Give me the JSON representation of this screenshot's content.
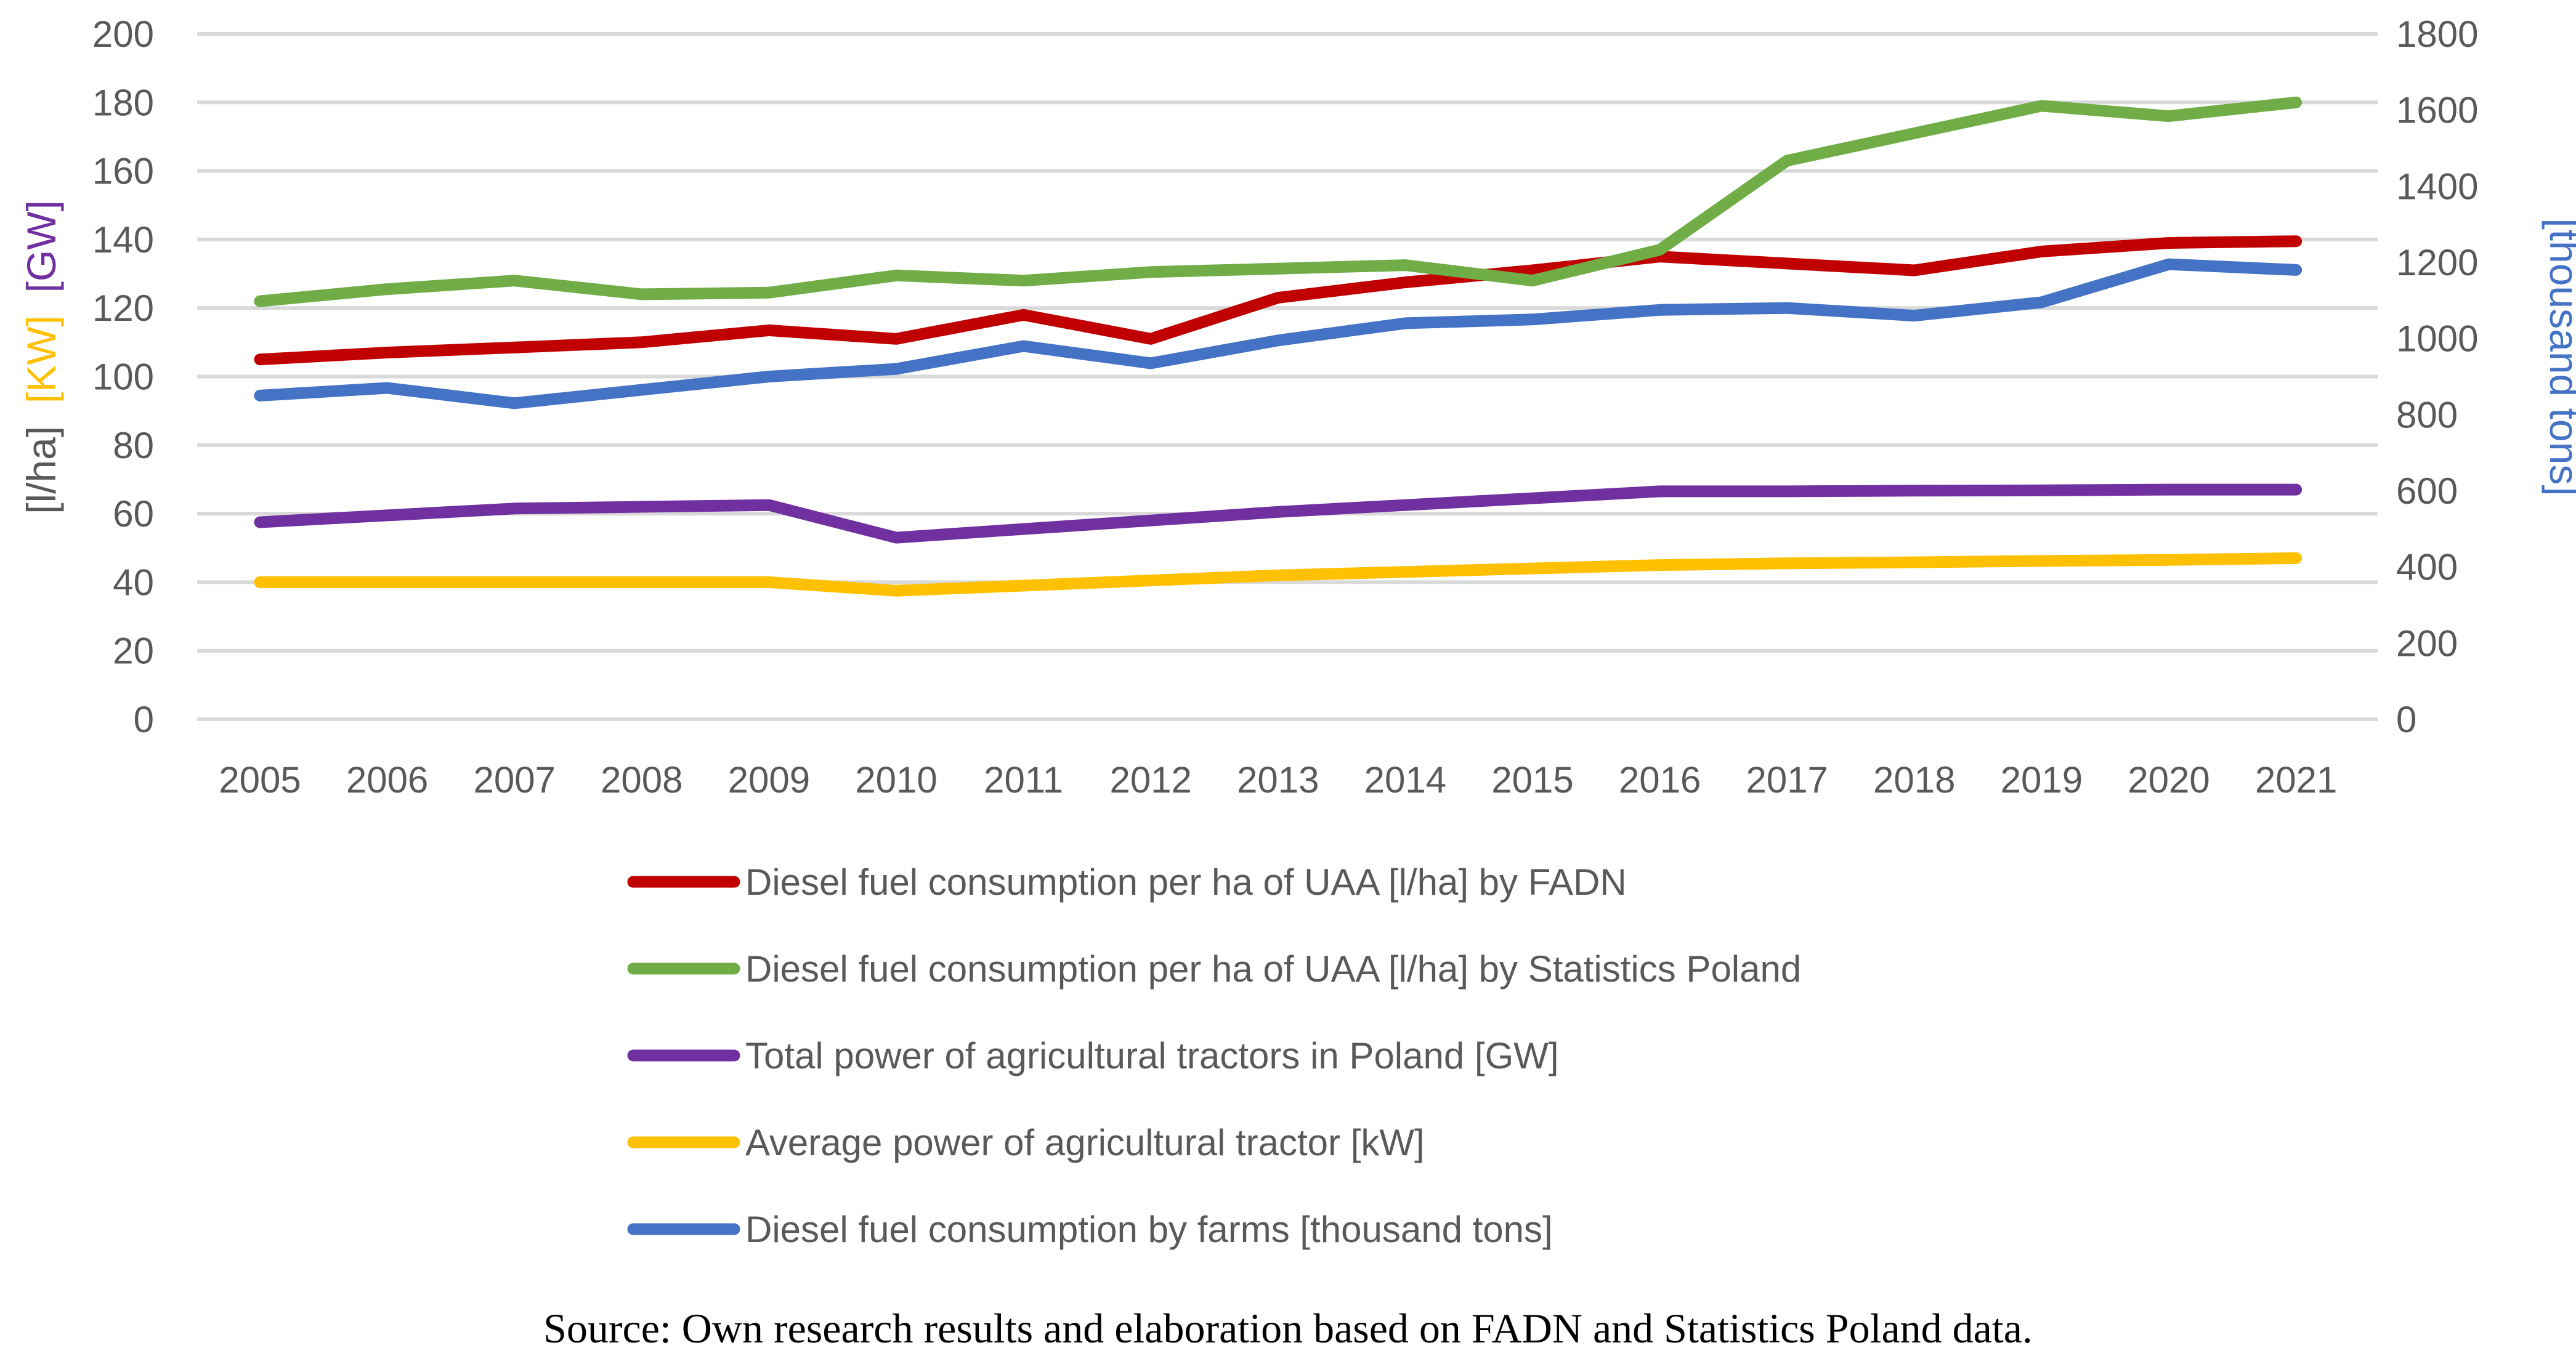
{
  "chart_data": {
    "type": "line",
    "x": [
      "2005",
      "2006",
      "2007",
      "2008",
      "2009",
      "2010",
      "2011",
      "2012",
      "2013",
      "2014",
      "2015",
      "2016",
      "2017",
      "2018",
      "2019",
      "2020",
      "2021"
    ],
    "y_left": {
      "ylim": [
        0,
        200
      ],
      "ticks": [
        0,
        20,
        40,
        60,
        80,
        100,
        120,
        140,
        160,
        180,
        200
      ],
      "label_parts": [
        {
          "text": "[l/ha]",
          "color": "#595959"
        },
        {
          "text": "[KW]",
          "color": "#FFC000"
        },
        {
          "text": "[GW]",
          "color": "#7030A0"
        }
      ]
    },
    "y_right": {
      "ylim": [
        0,
        1800
      ],
      "ticks": [
        0,
        200,
        400,
        600,
        800,
        1000,
        1200,
        1400,
        1600,
        1800
      ],
      "label": "[thousand tons]",
      "label_color": "#4472C4"
    },
    "grid": true,
    "legend_position": "bottom",
    "series": [
      {
        "name": "Diesel fuel consumption per ha of UAA [l/ha] by FADN",
        "color": "#C00000",
        "axis": "left",
        "values": [
          105,
          107,
          108.5,
          110,
          113.5,
          111,
          118,
          111,
          123,
          127.5,
          131,
          135,
          133,
          131,
          136.5,
          139,
          139.5
        ]
      },
      {
        "name": "Diesel fuel consumption per ha of UAA [l/ha] by Statistics Poland",
        "color": "#70AD47",
        "axis": "left",
        "values": [
          122,
          125.5,
          128,
          124,
          124.5,
          129.5,
          128,
          130.5,
          131.5,
          132.5,
          128,
          137,
          163,
          171,
          179,
          176,
          180
        ]
      },
      {
        "name": "Total power of agricultural tractors in Poland [GW]",
        "color": "#7030A0",
        "axis": "left",
        "values": [
          57.5,
          59.5,
          61.5,
          62,
          62.5,
          53,
          55.5,
          58,
          60.5,
          62.5,
          64.5,
          66.5,
          66.5,
          66.7,
          66.8,
          67,
          67
        ]
      },
      {
        "name": "Average power of agricultural tractor [kW]",
        "color": "#FFC000",
        "axis": "left",
        "values": [
          40,
          40,
          40,
          40,
          40,
          37.5,
          39,
          40.5,
          42,
          43,
          44,
          45,
          45.5,
          45.8,
          46.2,
          46.5,
          47
        ]
      },
      {
        "name": "Diesel fuel consumption by farms [thousand tons]",
        "color": "#4472C4",
        "axis": "right",
        "values": [
          850,
          870,
          830,
          865,
          900,
          920,
          980,
          935,
          995,
          1040,
          1050,
          1075,
          1080,
          1060,
          1095,
          1195,
          1180
        ]
      }
    ]
  },
  "source_note": "Source: Own research results and elaboration based on FADN and Statistics Poland data."
}
